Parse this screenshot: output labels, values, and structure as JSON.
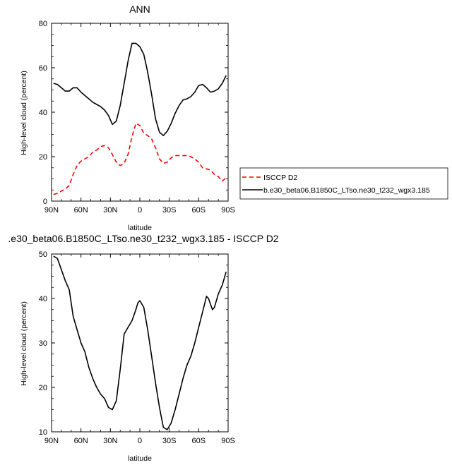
{
  "chart_data": [
    {
      "type": "line",
      "title": "ANN",
      "xlabel": "latitude",
      "ylabel": "High-level cloud (percent)",
      "xlim": [
        90,
        -90
      ],
      "ylim": [
        0,
        80
      ],
      "x_ticks": [
        90,
        60,
        30,
        0,
        -30,
        -60,
        -90
      ],
      "x_tick_labels": [
        "90N",
        "60N",
        "30N",
        "0",
        "30S",
        "60S",
        "90S"
      ],
      "y_ticks": [
        0,
        20,
        40,
        60,
        80
      ],
      "y_tick_labels": [
        "0",
        "20",
        "40",
        "60",
        "80"
      ],
      "legend_position": "right",
      "series": [
        {
          "name": "ISCCP D2",
          "color": "#ff0000",
          "dash": "dashed",
          "x": [
            88,
            84,
            80,
            76,
            72,
            68,
            64,
            60,
            56,
            52,
            48,
            44,
            40,
            36,
            32,
            28,
            24,
            20,
            16,
            12,
            8,
            4,
            0,
            -4,
            -8,
            -12,
            -16,
            -20,
            -24,
            -28,
            -32,
            -36,
            -40,
            -44,
            -48,
            -52,
            -56,
            -60,
            -64,
            -68,
            -72,
            -76,
            -80,
            -84,
            -88
          ],
          "y": [
            3,
            3.5,
            4.5,
            5.5,
            7,
            12,
            16,
            18,
            19,
            20,
            22,
            23,
            24.5,
            25,
            24,
            21,
            17.5,
            16,
            17,
            21,
            29,
            35,
            34,
            30.5,
            29.5,
            28,
            24,
            19,
            17,
            17.5,
            19.5,
            20.5,
            20.5,
            20.5,
            20.5,
            20,
            19,
            17.5,
            15,
            14.5,
            14,
            12,
            11,
            9,
            10.5
          ]
        },
        {
          "name": "b.e30_beta06.B1850C_LTso.ne30_t232_wgx3.185",
          "color": "#000000",
          "dash": "solid",
          "x": [
            88,
            84,
            80,
            76,
            72,
            68,
            64,
            60,
            56,
            52,
            48,
            44,
            40,
            36,
            32,
            28,
            24,
            20,
            16,
            12,
            8,
            4,
            0,
            -4,
            -8,
            -12,
            -16,
            -20,
            -24,
            -28,
            -32,
            -36,
            -40,
            -44,
            -48,
            -52,
            -56,
            -60,
            -64,
            -68,
            -72,
            -76,
            -80,
            -84,
            -88
          ],
          "y": [
            53,
            52.5,
            51,
            49.5,
            49.5,
            51,
            51,
            49,
            47.5,
            46,
            44.5,
            43.5,
            42.5,
            41,
            38.5,
            34.5,
            36,
            43,
            53,
            63,
            71,
            71,
            69.5,
            66,
            58,
            48,
            37,
            31,
            29.5,
            31.5,
            35,
            39.5,
            43,
            45.5,
            46,
            47,
            49,
            52,
            52.5,
            51,
            49,
            49.5,
            50.5,
            53,
            56.5
          ]
        }
      ]
    },
    {
      "type": "line",
      "title": ".e30_beta06.B1850C_LTso.ne30_t232_wgx3.185 - ISCCP D2",
      "xlabel": "latitude",
      "ylabel": "High-level cloud (percent)",
      "xlim": [
        90,
        -90
      ],
      "ylim": [
        10,
        50
      ],
      "x_ticks": [
        90,
        60,
        30,
        0,
        -30,
        -60,
        -90
      ],
      "x_tick_labels": [
        "90N",
        "60N",
        "30N",
        "0",
        "30S",
        "60S",
        "90S"
      ],
      "y_ticks": [
        10,
        20,
        30,
        40,
        50
      ],
      "y_tick_labels": [
        "10",
        "20",
        "30",
        "40",
        "50"
      ],
      "series": [
        {
          "color": "#000000",
          "dash": "solid",
          "x": [
            88,
            84,
            80,
            76,
            72,
            68,
            64,
            60,
            56,
            52,
            48,
            44,
            40,
            36,
            32,
            28,
            24,
            20,
            16,
            12,
            8,
            4,
            2,
            0,
            -4,
            -8,
            -12,
            -16,
            -20,
            -24,
            -28,
            -32,
            -36,
            -40,
            -44,
            -48,
            -52,
            -56,
            -60,
            -64,
            -68,
            -70,
            -74,
            -76,
            -80,
            -84,
            -88
          ],
          "y": [
            49.5,
            49,
            46.5,
            44,
            42,
            36,
            33,
            30,
            28,
            24.5,
            22,
            20,
            18.5,
            17.5,
            15.5,
            15,
            17,
            24,
            32,
            33.5,
            35,
            37.5,
            39,
            39.5,
            38,
            33,
            27,
            21,
            15.5,
            11,
            10.5,
            12,
            15,
            18.5,
            22,
            25,
            27,
            30,
            33.5,
            37,
            40.5,
            40,
            37.5,
            38,
            41,
            43,
            46
          ]
        }
      ]
    }
  ]
}
